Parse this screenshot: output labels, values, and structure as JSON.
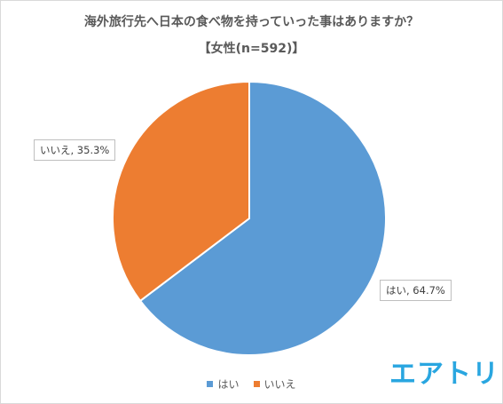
{
  "chart_data": {
    "type": "pie",
    "title": "海外旅行先へ日本の食べ物を持っていった事はありますか？",
    "subtitle": "【女性(n=592)】",
    "slices": [
      {
        "label": "はい",
        "value": 64.7,
        "data_label": "はい, 64.7%",
        "color": "#5b9bd5"
      },
      {
        "label": "いいえ",
        "value": 35.3,
        "data_label": "いいえ, 35.3%",
        "color": "#ed7d31"
      }
    ],
    "legend_position": "bottom"
  },
  "brand": {
    "logo_text": "エアトリ",
    "color": "#29a6e0"
  }
}
